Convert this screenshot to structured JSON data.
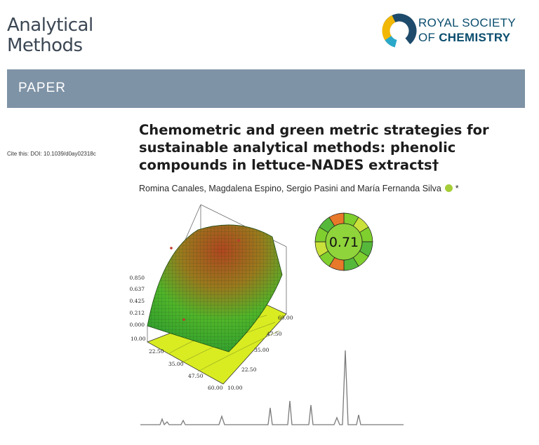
{
  "header": {
    "journal_line1": "Analytical",
    "journal_line2": "Methods",
    "publisher_line1": "ROYAL SOCIETY",
    "publisher_line2_prefix": "OF ",
    "publisher_line2_bold": "CHEMISTRY"
  },
  "banner": {
    "label": "PAPER"
  },
  "citation": "Cite this: DOI: 10.1039/d0ay02318c",
  "article": {
    "title_line1": "Chemometric and green metric strategies for",
    "title_line2": "sustainable analytical methods: phenolic",
    "title_line3": "compounds in lettuce-NADES extracts†",
    "authors": "Romina Canales, Magdalena Espino, Sergio Pasini and María Fernanda Silva",
    "corresponding_mark": "*"
  },
  "graphic": {
    "surface_z_ticks": [
      "0.850",
      "0.637",
      "0.425",
      "0.212",
      "0.000"
    ],
    "surface_axis1_ticks": [
      "10.00",
      "22.50",
      "35.00",
      "47.50",
      "60.00"
    ],
    "surface_axis2_ticks": [
      "60.00",
      "47.50",
      "35.00",
      "22.50",
      "10.00"
    ],
    "agree_score": "0.71",
    "colors": {
      "surface_low": "#2fae2f",
      "surface_high": "#b0461f",
      "base_plane": "#d9ec22",
      "agree_green": "#7fcf2e",
      "agree_orange": "#e8782a"
    }
  }
}
